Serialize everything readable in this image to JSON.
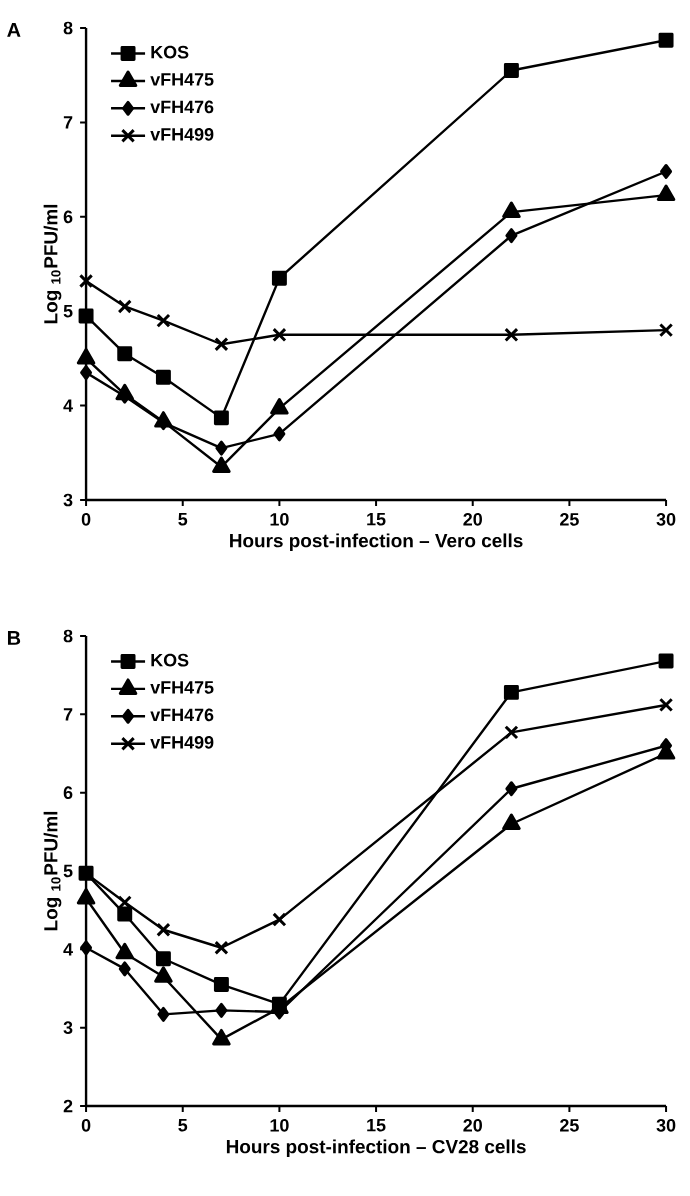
{
  "chart_data": [
    {
      "type": "line",
      "title": "A",
      "xlabel": "Hours post-infection – Vero cells",
      "ylabel": "Log $_{10}$PFU/ml",
      "x": [
        0,
        2,
        4,
        7,
        10,
        22,
        30
      ],
      "xlim": [
        0,
        30
      ],
      "xticks": [
        0,
        5,
        10,
        15,
        20,
        25,
        30
      ],
      "ylim": [
        3,
        8
      ],
      "yticks": [
        3,
        4,
        5,
        6,
        7,
        8
      ],
      "grid": false,
      "legend": "top left",
      "series": [
        {
          "name": "KOS",
          "color": "#000000",
          "marker": "square",
          "values": [
            4.95,
            4.55,
            4.3,
            3.87,
            5.35,
            7.55,
            7.87
          ]
        },
        {
          "name": "vFH475",
          "color": "#000000",
          "marker": "triangle",
          "values": [
            4.5,
            4.12,
            3.83,
            3.35,
            3.97,
            6.05,
            6.23
          ]
        },
        {
          "name": "vFH476",
          "color": "#000000",
          "marker": "diamond",
          "values": [
            4.35,
            4.1,
            3.82,
            3.55,
            3.7,
            5.8,
            6.48
          ]
        },
        {
          "name": "vFH499",
          "color": "#000000",
          "marker": "cross",
          "values": [
            5.32,
            5.05,
            4.9,
            4.65,
            4.75,
            4.75,
            4.8
          ]
        }
      ]
    },
    {
      "type": "line",
      "title": "B",
      "xlabel": "Hours post-infection – CV28 cells",
      "ylabel": "Log $_{10}$PFU/ml",
      "x": [
        0,
        2,
        4,
        7,
        10,
        22,
        30
      ],
      "xlim": [
        0,
        30
      ],
      "xticks": [
        0,
        5,
        10,
        15,
        20,
        25,
        30
      ],
      "ylim": [
        2,
        8
      ],
      "yticks": [
        2,
        3,
        4,
        5,
        6,
        7,
        8
      ],
      "grid": false,
      "legend": "top left",
      "series": [
        {
          "name": "KOS",
          "color": "#000000",
          "marker": "square",
          "values": [
            4.97,
            4.45,
            3.88,
            3.55,
            3.3,
            7.28,
            7.68
          ]
        },
        {
          "name": "vFH475",
          "color": "#000000",
          "marker": "triangle",
          "values": [
            4.65,
            3.95,
            3.65,
            2.85,
            3.25,
            5.6,
            6.5
          ]
        },
        {
          "name": "vFH476",
          "color": "#000000",
          "marker": "diamond",
          "values": [
            4.02,
            3.75,
            3.17,
            3.22,
            3.2,
            6.05,
            6.6
          ]
        },
        {
          "name": "vFH499",
          "color": "#000000",
          "marker": "cross",
          "values": [
            4.97,
            4.6,
            4.25,
            4.02,
            4.38,
            6.77,
            7.12
          ]
        }
      ]
    }
  ]
}
